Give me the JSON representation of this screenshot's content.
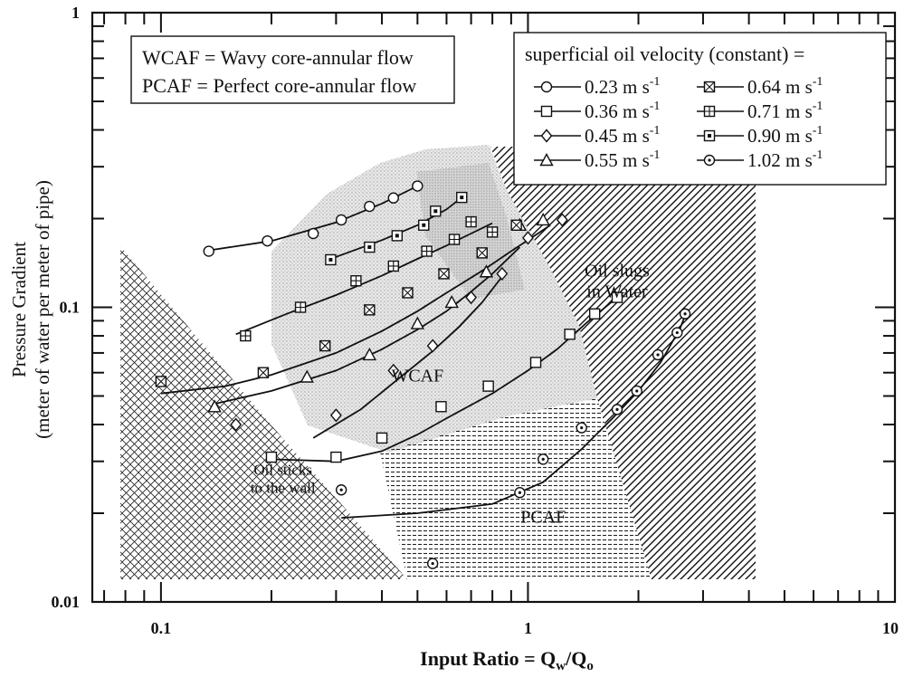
{
  "chart_data": {
    "type": "scatter",
    "xlabel": "Input Ratio = Q",
    "xlabel_sub_w": "w",
    "xlabel_mid": "/Q",
    "xlabel_sub_o": "o",
    "ylabel": "Pressure Gradient",
    "ylabel2": "(meter of water per meter of pipe)",
    "x_scale": "log",
    "y_scale": "log",
    "xlim": [
      0.065,
      10
    ],
    "ylim": [
      0.01,
      1
    ],
    "x_ticks": [
      {
        "value": 0.1,
        "label": "0.1"
      },
      {
        "value": 1,
        "label": "1"
      },
      {
        "value": 10,
        "label": "10"
      }
    ],
    "y_ticks": [
      {
        "value": 1,
        "label": "1"
      },
      {
        "value": 0.1,
        "label": "0.1"
      },
      {
        "value": 0.01,
        "label": "0.01"
      }
    ],
    "grid": false,
    "legend_placement": "top-right",
    "legend_title": "superficial oil velocity (constant) =",
    "note_lines": [
      "WCAF = Wavy core-annular flow",
      "PCAF = Perfect core-annular flow"
    ],
    "region_labels": [
      {
        "name": "WCAF",
        "lines": [
          "WCAF"
        ],
        "x": 0.5,
        "y": 0.056
      },
      {
        "name": "PCAF",
        "lines": [
          "PCAF"
        ],
        "x": 1.1,
        "y": 0.0186
      },
      {
        "name": "oil-slugs",
        "lines": [
          "Oil slugs",
          "in Water"
        ],
        "x": 1.75,
        "y": 0.127
      },
      {
        "name": "oil-sticks",
        "lines": [
          "Oil sticks",
          "to the wall"
        ],
        "x": 0.215,
        "y": 0.027
      }
    ],
    "series": [
      {
        "name": "0.23 m s",
        "unit_exp": "-1",
        "marker": "circle",
        "x": [
          0.135,
          0.195,
          0.26,
          0.31,
          0.37,
          0.43,
          0.5
        ],
        "y": [
          0.155,
          0.168,
          0.178,
          0.198,
          0.22,
          0.235,
          0.258
        ]
      },
      {
        "name": "0.36 m s",
        "unit_exp": "-1",
        "marker": "square",
        "x": [
          0.2,
          0.3,
          0.4,
          0.58,
          0.78,
          1.05,
          1.3,
          1.52,
          1.75
        ],
        "y": [
          0.031,
          0.031,
          0.036,
          0.046,
          0.054,
          0.065,
          0.081,
          0.095,
          0.108
        ]
      },
      {
        "name": "0.45 m s",
        "unit_exp": "-1",
        "marker": "diamond",
        "x": [
          0.16,
          0.3,
          0.43,
          0.55,
          0.7,
          0.85,
          1.0,
          1.24
        ],
        "y": [
          0.04,
          0.043,
          0.061,
          0.074,
          0.108,
          0.13,
          0.172,
          0.198
        ]
      },
      {
        "name": "0.55 m s",
        "unit_exp": "-1",
        "marker": "triangle",
        "x": [
          0.14,
          0.25,
          0.37,
          0.5,
          0.62,
          0.77,
          0.95,
          1.1
        ],
        "y": [
          0.046,
          0.058,
          0.069,
          0.088,
          0.104,
          0.132,
          0.19,
          0.198
        ]
      },
      {
        "name": "0.64 m s",
        "unit_exp": "-1",
        "marker": "square-x",
        "x": [
          0.1,
          0.19,
          0.28,
          0.37,
          0.47,
          0.59,
          0.75,
          0.93
        ],
        "y": [
          0.056,
          0.06,
          0.074,
          0.098,
          0.112,
          0.13,
          0.153,
          0.19
        ]
      },
      {
        "name": "0.71 m s",
        "unit_exp": "-1",
        "marker": "square-plus",
        "x": [
          0.17,
          0.24,
          0.34,
          0.43,
          0.53,
          0.63,
          0.7,
          0.8
        ],
        "y": [
          0.08,
          0.1,
          0.123,
          0.138,
          0.155,
          0.17,
          0.195,
          0.18
        ]
      },
      {
        "name": "0.90 m s",
        "unit_exp": "-1",
        "marker": "square-dot",
        "x": [
          0.29,
          0.37,
          0.44,
          0.52,
          0.56,
          0.66
        ],
        "y": [
          0.145,
          0.16,
          0.175,
          0.19,
          0.212,
          0.236
        ]
      },
      {
        "name": "1.02 m s",
        "unit_exp": "-1",
        "marker": "circle-dot",
        "x": [
          0.31,
          0.55,
          0.95,
          1.1,
          1.4,
          1.75,
          1.98,
          2.26,
          2.55,
          2.68
        ],
        "y": [
          0.024,
          0.0135,
          0.0235,
          0.0305,
          0.039,
          0.045,
          0.052,
          0.069,
          0.082,
          0.095
        ]
      }
    ],
    "fit_curves": [
      {
        "name": "fit-0.23",
        "x": [
          0.135,
          0.2,
          0.3,
          0.4,
          0.5
        ],
        "y": [
          0.156,
          0.168,
          0.194,
          0.225,
          0.258
        ]
      },
      {
        "name": "fit-0.90",
        "x": [
          0.29,
          0.4,
          0.5,
          0.6,
          0.66
        ],
        "y": [
          0.146,
          0.169,
          0.19,
          0.215,
          0.236
        ]
      },
      {
        "name": "fit-0.71",
        "x": [
          0.16,
          0.22,
          0.3,
          0.4,
          0.5,
          0.6,
          0.7,
          0.8
        ],
        "y": [
          0.081,
          0.095,
          0.11,
          0.128,
          0.146,
          0.162,
          0.178,
          0.193
        ]
      },
      {
        "name": "fit-0.64",
        "x": [
          0.1,
          0.15,
          0.2,
          0.3,
          0.4,
          0.5,
          0.6,
          0.75,
          0.9,
          1.05,
          1.15
        ],
        "y": [
          0.051,
          0.054,
          0.059,
          0.07,
          0.083,
          0.097,
          0.112,
          0.133,
          0.155,
          0.176,
          0.19
        ]
      },
      {
        "name": "fit-0.55",
        "x": [
          0.14,
          0.2,
          0.3,
          0.4,
          0.5,
          0.6,
          0.7,
          0.8,
          0.95
        ],
        "y": [
          0.047,
          0.052,
          0.061,
          0.072,
          0.084,
          0.097,
          0.113,
          0.13,
          0.16
        ]
      },
      {
        "name": "fit-0.45",
        "x": [
          0.26,
          0.35,
          0.45,
          0.55,
          0.65,
          0.75,
          0.85
        ],
        "y": [
          0.036,
          0.045,
          0.058,
          0.071,
          0.086,
          0.104,
          0.127
        ]
      },
      {
        "name": "fit-0.36",
        "x": [
          0.2,
          0.3,
          0.4,
          0.5,
          0.6,
          0.8,
          1.0,
          1.2,
          1.45,
          1.75
        ],
        "y": [
          0.0305,
          0.03,
          0.0325,
          0.037,
          0.042,
          0.051,
          0.061,
          0.072,
          0.089,
          0.108
        ]
      },
      {
        "name": "fit-1.02",
        "x": [
          0.31,
          0.5,
          0.8,
          1.1,
          1.4,
          1.7,
          2.0,
          2.3,
          2.6,
          2.7
        ],
        "y": [
          0.0193,
          0.02,
          0.0215,
          0.0255,
          0.033,
          0.042,
          0.052,
          0.065,
          0.085,
          0.096
        ]
      }
    ]
  }
}
